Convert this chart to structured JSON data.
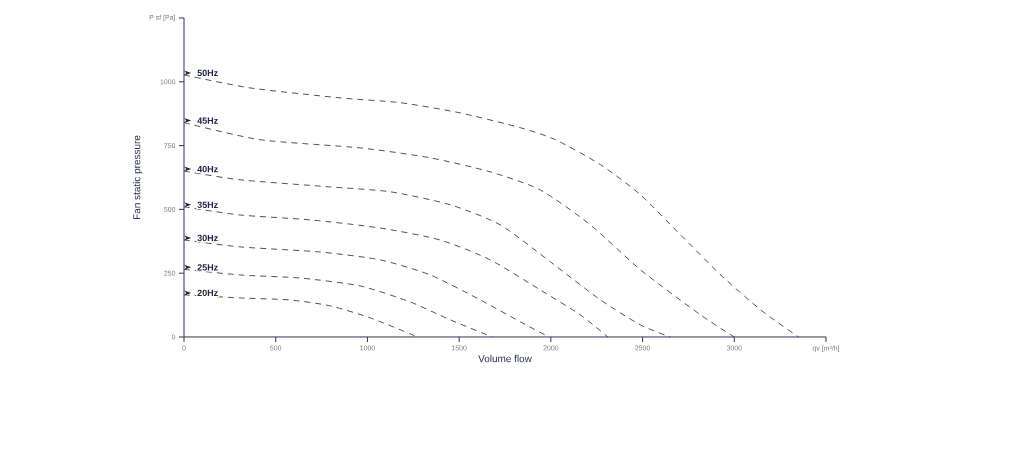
{
  "chart_data": {
    "type": "line",
    "xlabel": "Volume flow",
    "ylabel": "Fan static pressure",
    "xlim": [
      0,
      3500
    ],
    "ylim": [
      0,
      1250
    ],
    "xticks": [
      0,
      500,
      1000,
      1500,
      2000,
      2500,
      3000,
      {
        "value": 3500,
        "label": "qv [m³/h]"
      }
    ],
    "yticks": [
      0,
      250,
      500,
      750,
      1000,
      {
        "value": 1250,
        "label": "P sf [Pa]"
      }
    ],
    "grid": false,
    "legend": "left",
    "line_style": "dashed",
    "series": [
      {
        "name": "50Hz",
        "color": "#1e2540",
        "x": [
          0,
          360,
          850,
          1180,
          1506,
          1834,
          2025,
          2271,
          2489,
          2707,
          2926,
          3144,
          3350
        ],
        "values": [
          1027,
          976,
          937,
          918,
          878,
          820,
          773,
          675,
          557,
          400,
          243,
          106,
          0
        ]
      },
      {
        "name": "45Hz",
        "color": "#1e2540",
        "x": [
          0,
          415,
          960,
          1343,
          1670,
          1943,
          2216,
          2489,
          2817,
          3000
        ],
        "values": [
          840,
          773,
          741,
          702,
          647,
          576,
          439,
          263,
          86,
          0
        ]
      },
      {
        "name": "40Hz",
        "color": "#1e2540",
        "x": [
          0,
          306,
          797,
          1124,
          1452,
          1725,
          1998,
          2271,
          2489,
          2650
        ],
        "values": [
          650,
          616,
          588,
          569,
          518,
          439,
          294,
          145,
          47,
          0
        ]
      },
      {
        "name": "35Hz",
        "color": "#1e2540",
        "x": [
          0,
          306,
          688,
          1070,
          1397,
          1670,
          1943,
          2162,
          2310
        ],
        "values": [
          510,
          478,
          459,
          427,
          380,
          302,
          184,
          86,
          0
        ]
      },
      {
        "name": "30Hz",
        "color": "#1e2540",
        "x": [
          0,
          306,
          742,
          1070,
          1343,
          1616,
          1834,
          1990
        ],
        "values": [
          380,
          353,
          333,
          302,
          243,
          145,
          59,
          0
        ]
      },
      {
        "name": "25Hz",
        "color": "#1e2540",
        "x": [
          0,
          306,
          633,
          961,
          1234,
          1452,
          1680
        ],
        "values": [
          265,
          243,
          231,
          200,
          137,
          67,
          0
        ]
      },
      {
        "name": "20Hz",
        "color": "#1e2540",
        "x": [
          0,
          306,
          579,
          797,
          1015,
          1234,
          1270
        ],
        "values": [
          165,
          153,
          145,
          122,
          75,
          12,
          0
        ]
      }
    ]
  }
}
